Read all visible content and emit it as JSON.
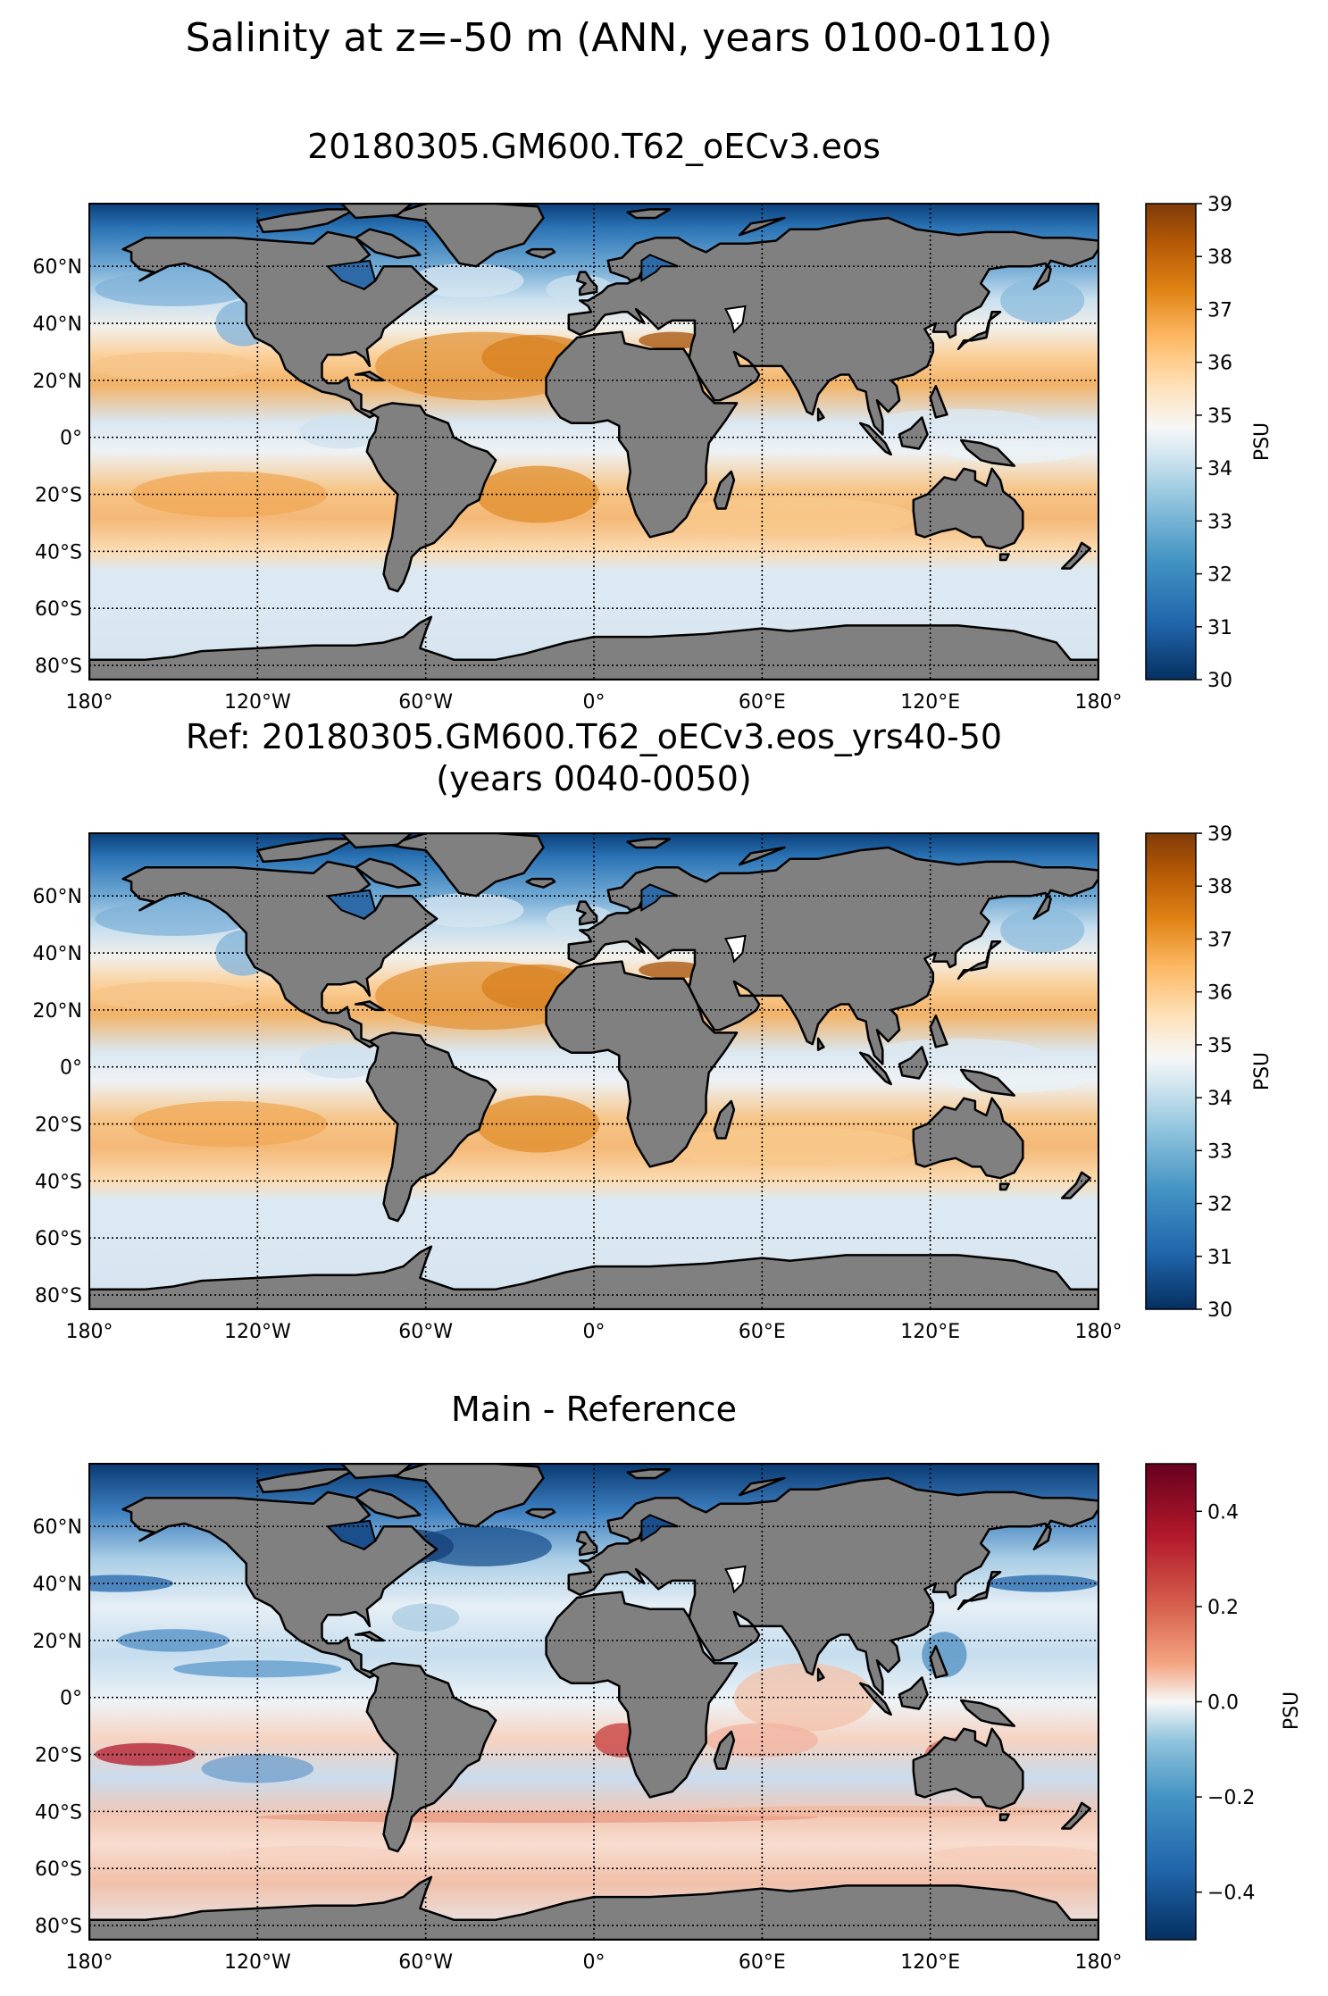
{
  "figure": {
    "suptitle": "Salinity at z=-50 m (ANN, years 0100-0110)"
  },
  "panels": [
    {
      "id": "main",
      "title_lines": [
        "20180305.GM600.T62_oECv3.eos"
      ],
      "colorbar": {
        "label": "PSU",
        "colormap": "PuOr_r (blue-white-orange)",
        "range": [
          30,
          39
        ],
        "ticks": [
          "30",
          "31",
          "32",
          "33",
          "34",
          "35",
          "36",
          "37",
          "38",
          "39"
        ]
      }
    },
    {
      "id": "reference",
      "title_lines": [
        "Ref: 20180305.GM600.T62_oECv3.eos_yrs40-50",
        "(years 0040-0050)"
      ],
      "colorbar": {
        "label": "PSU",
        "colormap": "PuOr_r (blue-white-orange)",
        "range": [
          30,
          39
        ],
        "ticks": [
          "30",
          "31",
          "32",
          "33",
          "34",
          "35",
          "36",
          "37",
          "38",
          "39"
        ]
      }
    },
    {
      "id": "difference",
      "title_lines": [
        "Main - Reference"
      ],
      "colorbar": {
        "label": "PSU",
        "colormap": "RdBu_r (blue-white-red)",
        "range": [
          -0.5,
          0.5
        ],
        "ticks": [
          "−0.4",
          "−0.2",
          "0.0",
          "0.2",
          "0.4"
        ]
      }
    }
  ],
  "axes": {
    "lon_ticks": [
      "180°",
      "120°W",
      "60°W",
      "0°",
      "60°E",
      "120°E",
      "180°"
    ],
    "lat_ticks": [
      "60°N",
      "40°N",
      "20°N",
      "0°",
      "20°S",
      "40°S",
      "60°S",
      "80°S"
    ]
  },
  "colors": {
    "land": "#808080",
    "coast": "#000000",
    "grid": "#000000"
  }
}
